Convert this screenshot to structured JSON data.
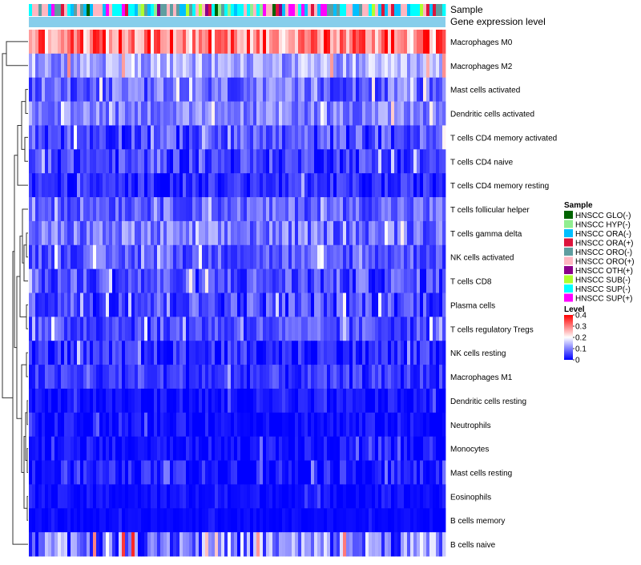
{
  "chart_data": {
    "type": "heatmap",
    "annotation_labels": [
      "Sample",
      "Gene expression level"
    ],
    "rows": [
      {
        "name": "Macrophages M0",
        "mean": 0.3,
        "spread": 0.1
      },
      {
        "name": "Macrophages M2",
        "mean": 0.13,
        "spread": 0.06
      },
      {
        "name": "Mast cells activated",
        "mean": 0.08,
        "spread": 0.06
      },
      {
        "name": "Dendritic cells activated",
        "mean": 0.1,
        "spread": 0.05
      },
      {
        "name": "T cells CD4 memory activated",
        "mean": 0.06,
        "spread": 0.06
      },
      {
        "name": "T cells CD4 naive",
        "mean": 0.05,
        "spread": 0.05
      },
      {
        "name": "T cells CD4 memory resting",
        "mean": 0.03,
        "spread": 0.04
      },
      {
        "name": "T cells follicular helper",
        "mean": 0.08,
        "spread": 0.05
      },
      {
        "name": "T cells gamma delta",
        "mean": 0.09,
        "spread": 0.06
      },
      {
        "name": "NK cells activated",
        "mean": 0.07,
        "spread": 0.05
      },
      {
        "name": "T cells CD8",
        "mean": 0.06,
        "spread": 0.06
      },
      {
        "name": "Plasma cells",
        "mean": 0.06,
        "spread": 0.06
      },
      {
        "name": "T cells regulatory  Tregs",
        "mean": 0.06,
        "spread": 0.05
      },
      {
        "name": "NK cells resting",
        "mean": 0.03,
        "spread": 0.05
      },
      {
        "name": "Macrophages M1",
        "mean": 0.04,
        "spread": 0.04
      },
      {
        "name": "Dendritic cells resting",
        "mean": 0.01,
        "spread": 0.03
      },
      {
        "name": "Neutrophils",
        "mean": 0.01,
        "spread": 0.03
      },
      {
        "name": "Monocytes",
        "mean": 0.01,
        "spread": 0.03
      },
      {
        "name": "Mast cells resting",
        "mean": 0.02,
        "spread": 0.04
      },
      {
        "name": "Eosinophils",
        "mean": 0.01,
        "spread": 0.02
      },
      {
        "name": "B cells memory",
        "mean": 0.005,
        "spread": 0.01
      },
      {
        "name": "B cells naive",
        "mean": 0.1,
        "spread": 0.1
      }
    ],
    "n_samples": 130,
    "color_scale": {
      "title": "Level",
      "min": 0,
      "max": 0.4,
      "ticks": [
        "0.4",
        "0.3",
        "0.2",
        "0.1",
        "0"
      ],
      "tick_values": [
        0.4,
        0.3,
        0.2,
        0.1,
        0
      ],
      "colors": [
        "#0000ff",
        "#ffffff",
        "#ff0000"
      ]
    },
    "annotation_bar_color": "#87ceeb",
    "sample_legend": {
      "title": "Sample",
      "entries": [
        {
          "label": "HNSCC GLO(-)",
          "color": "#006400"
        },
        {
          "label": "HNSCC HYP(-)",
          "color": "#90ee90"
        },
        {
          "label": "HNSCC ORA(-)",
          "color": "#00bfff"
        },
        {
          "label": "HNSCC ORA(+)",
          "color": "#dc143c"
        },
        {
          "label": "HNSCC ORO(-)",
          "color": "#5f9ea0"
        },
        {
          "label": "HNSCC ORO(+)",
          "color": "#ffb6c1"
        },
        {
          "label": "HNSCC OTH(+)",
          "color": "#8b008b"
        },
        {
          "label": "HNSCC SUB(-)",
          "color": "#adff2f"
        },
        {
          "label": "HNSCC SUP(-)",
          "color": "#00ffff"
        },
        {
          "label": "HNSCC SUP(+)",
          "color": "#ff00ff"
        }
      ]
    }
  }
}
